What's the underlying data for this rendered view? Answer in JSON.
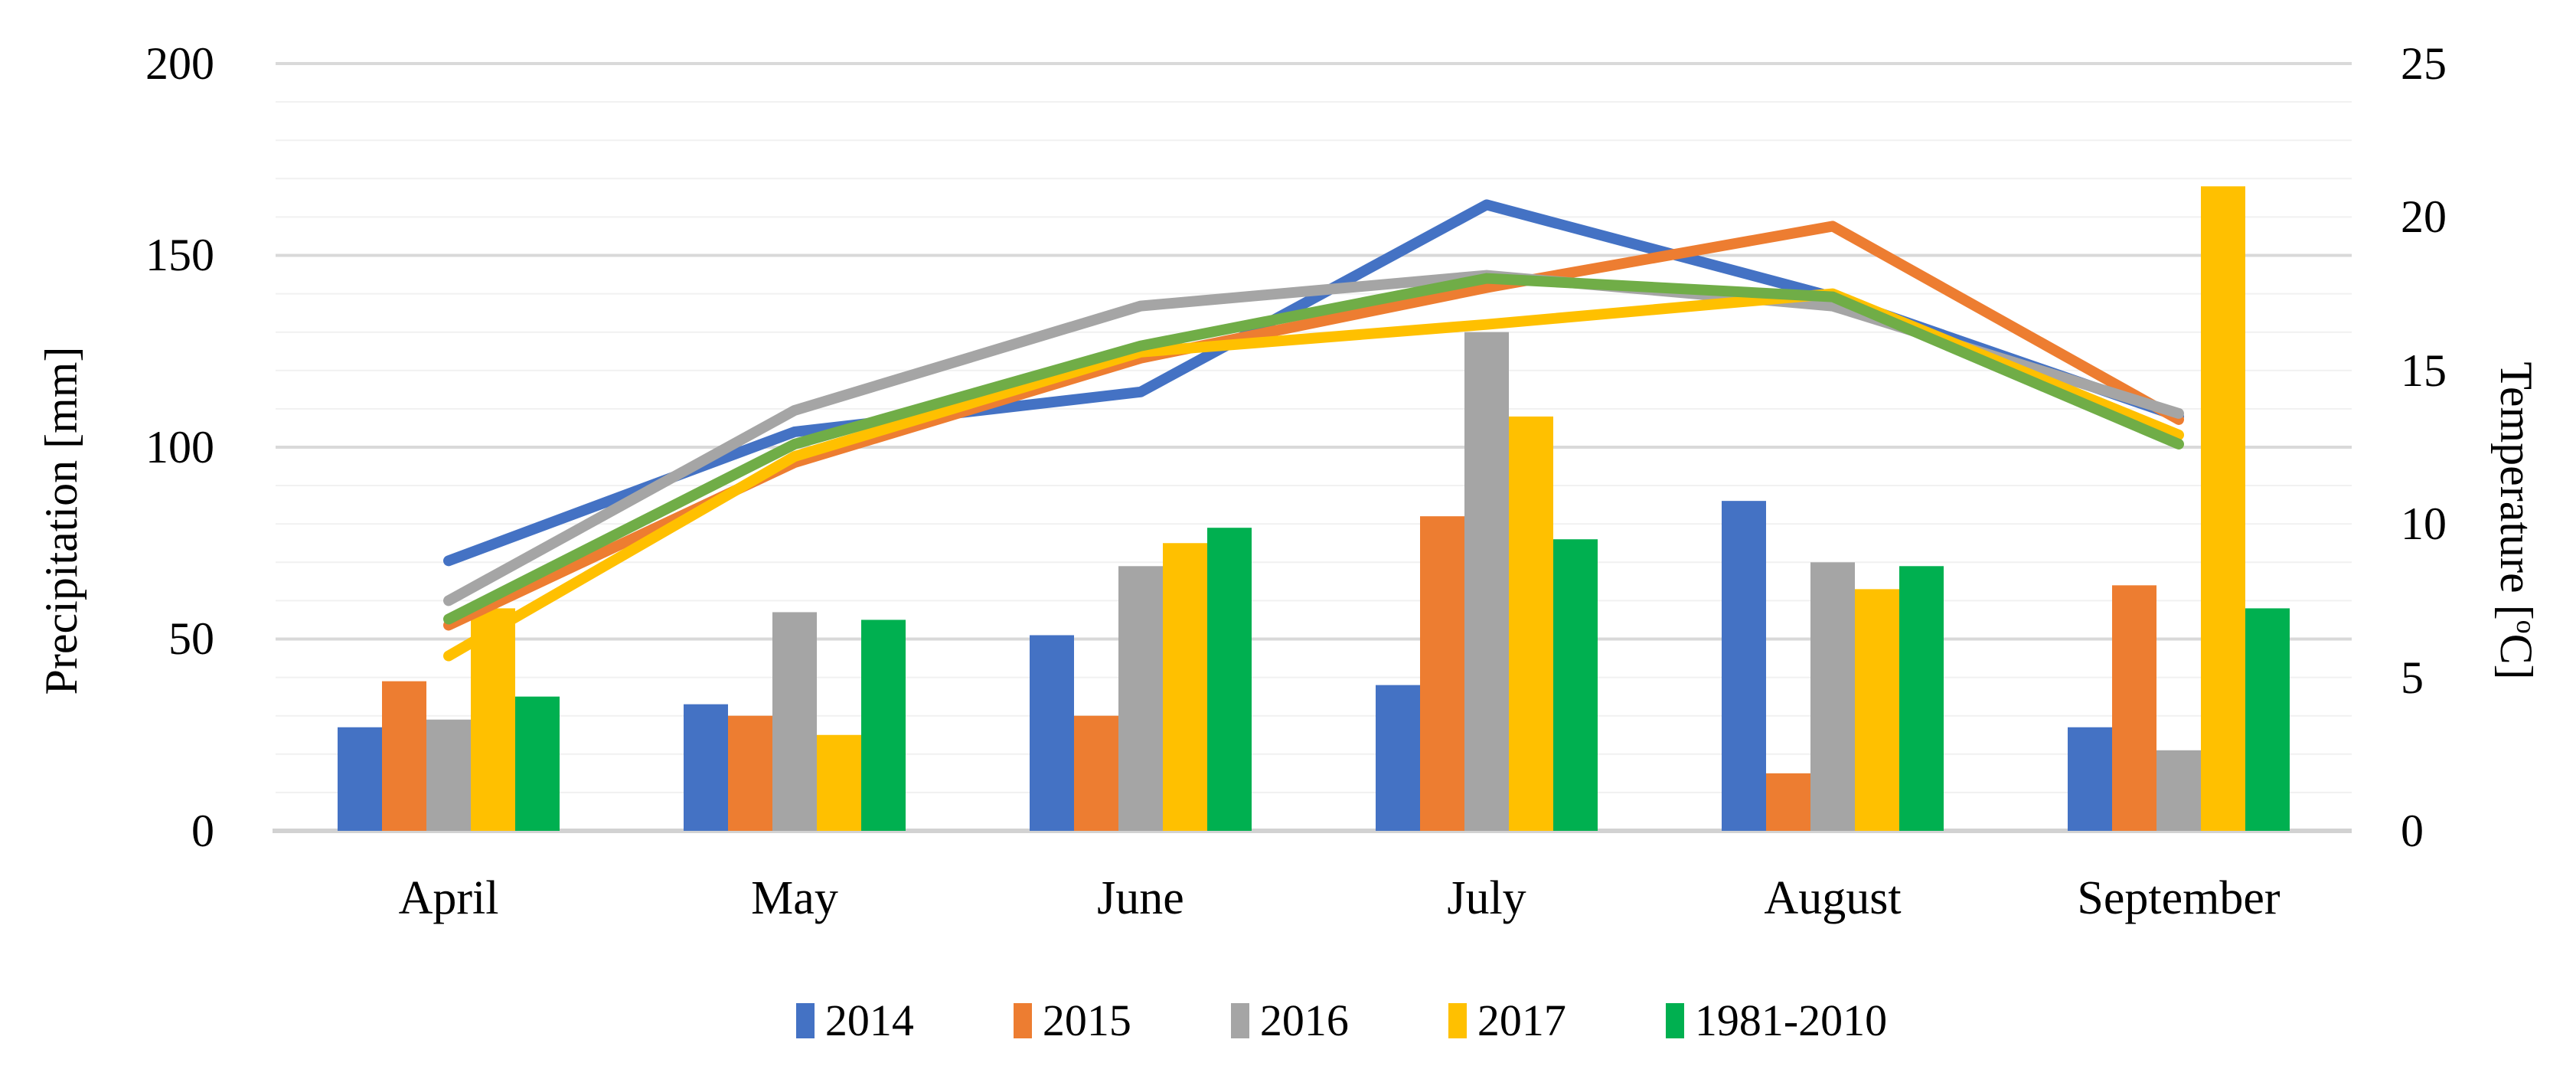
{
  "chart_data": {
    "type": "combo-bar-line",
    "title": "",
    "categories": [
      "April",
      "May",
      "June",
      "July",
      "August",
      "September"
    ],
    "bar_series": [
      {
        "name": "2014",
        "color": "#4472C4",
        "axis": "left",
        "values": [
          27,
          33,
          51,
          38,
          86,
          27
        ]
      },
      {
        "name": "2015",
        "color": "#ED7D31",
        "axis": "left",
        "values": [
          39,
          30,
          30,
          82,
          15,
          64
        ]
      },
      {
        "name": "2016",
        "color": "#A5A5A5",
        "axis": "left",
        "values": [
          29,
          57,
          69,
          130,
          70,
          21
        ]
      },
      {
        "name": "2017",
        "color": "#FFC000",
        "axis": "left",
        "values": [
          58,
          25,
          75,
          108,
          63,
          168
        ]
      },
      {
        "name": "1981-2010",
        "color": "#00B050",
        "axis": "left",
        "values": [
          35,
          55,
          79,
          76,
          69,
          58
        ]
      }
    ],
    "line_series": [
      {
        "name": "2014",
        "color": "#4472C4",
        "axis": "right",
        "values": [
          8.8,
          13.0,
          14.3,
          20.4,
          17.4,
          13.5
        ]
      },
      {
        "name": "2015",
        "color": "#ED7D31",
        "axis": "right",
        "values": [
          6.7,
          12.0,
          15.4,
          17.7,
          19.7,
          13.4
        ]
      },
      {
        "name": "2016",
        "color": "#A5A5A5",
        "axis": "right",
        "values": [
          7.5,
          13.7,
          17.1,
          18.1,
          17.1,
          13.6
        ]
      },
      {
        "name": "2017",
        "color": "#FFC000",
        "axis": "right",
        "values": [
          5.7,
          12.2,
          15.6,
          16.5,
          17.5,
          12.9
        ]
      },
      {
        "name": "1981-2010",
        "color": "#70AD47",
        "axis": "right",
        "values": [
          6.9,
          12.6,
          15.8,
          18.0,
          17.4,
          12.6
        ]
      }
    ],
    "left_axis": {
      "title": "Precipitation [mm]",
      "ticks": [
        "200",
        "150",
        "100",
        "50",
        "0"
      ],
      "range": [
        0,
        200
      ],
      "minor_grid_step": 10,
      "major_grid_step": 50
    },
    "right_axis": {
      "title_pre": "Temperature [",
      "title_sup": "o",
      "title_post": "C]",
      "ticks": [
        "25",
        "20",
        "15",
        "10",
        "5",
        "0"
      ],
      "range": [
        0,
        25
      ]
    },
    "legend_position": "bottom",
    "grid": "horizontal minor+major"
  },
  "legend": {
    "items": [
      {
        "label": "2014",
        "color": "#4472C4"
      },
      {
        "label": "2015",
        "color": "#ED7D31"
      },
      {
        "label": "2016",
        "color": "#A5A5A5"
      },
      {
        "label": "2017",
        "color": "#FFC000"
      },
      {
        "label": "1981-2010",
        "color": "#00B050"
      }
    ]
  },
  "colors": {
    "background": "#FFFFFF",
    "minor_grid": "#F1F1F1",
    "major_grid": "#D9D9D9",
    "axis_line": "#D2D2D2"
  }
}
